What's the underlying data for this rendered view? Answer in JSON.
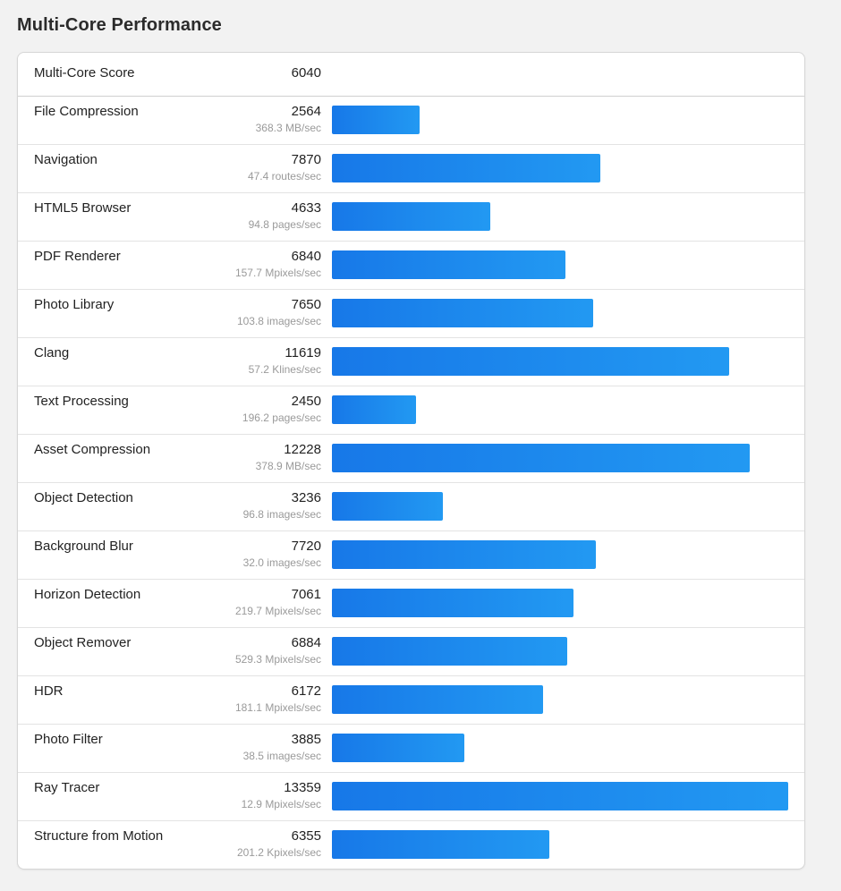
{
  "title": "Multi-Core Performance",
  "summary": {
    "label": "Multi-Core Score",
    "value": "6040"
  },
  "bar_max": 13359,
  "colors": {
    "bar_start": "#1778e8",
    "bar_end": "#2299f2"
  },
  "benchmarks": [
    {
      "name": "File Compression",
      "score": "2564",
      "rate": "368.3 MB/sec",
      "value": 2564
    },
    {
      "name": "Navigation",
      "score": "7870",
      "rate": "47.4 routes/sec",
      "value": 7870
    },
    {
      "name": "HTML5 Browser",
      "score": "4633",
      "rate": "94.8 pages/sec",
      "value": 4633
    },
    {
      "name": "PDF Renderer",
      "score": "6840",
      "rate": "157.7 Mpixels/sec",
      "value": 6840
    },
    {
      "name": "Photo Library",
      "score": "7650",
      "rate": "103.8 images/sec",
      "value": 7650
    },
    {
      "name": "Clang",
      "score": "11619",
      "rate": "57.2 Klines/sec",
      "value": 11619
    },
    {
      "name": "Text Processing",
      "score": "2450",
      "rate": "196.2 pages/sec",
      "value": 2450
    },
    {
      "name": "Asset Compression",
      "score": "12228",
      "rate": "378.9 MB/sec",
      "value": 12228
    },
    {
      "name": "Object Detection",
      "score": "3236",
      "rate": "96.8 images/sec",
      "value": 3236
    },
    {
      "name": "Background Blur",
      "score": "7720",
      "rate": "32.0 images/sec",
      "value": 7720
    },
    {
      "name": "Horizon Detection",
      "score": "7061",
      "rate": "219.7 Mpixels/sec",
      "value": 7061
    },
    {
      "name": "Object Remover",
      "score": "6884",
      "rate": "529.3 Mpixels/sec",
      "value": 6884
    },
    {
      "name": "HDR",
      "score": "6172",
      "rate": "181.1 Mpixels/sec",
      "value": 6172
    },
    {
      "name": "Photo Filter",
      "score": "3885",
      "rate": "38.5 images/sec",
      "value": 3885
    },
    {
      "name": "Ray Tracer",
      "score": "13359",
      "rate": "12.9 Mpixels/sec",
      "value": 13359
    },
    {
      "name": "Structure from Motion",
      "score": "6355",
      "rate": "201.2 Kpixels/sec",
      "value": 6355
    }
  ]
}
